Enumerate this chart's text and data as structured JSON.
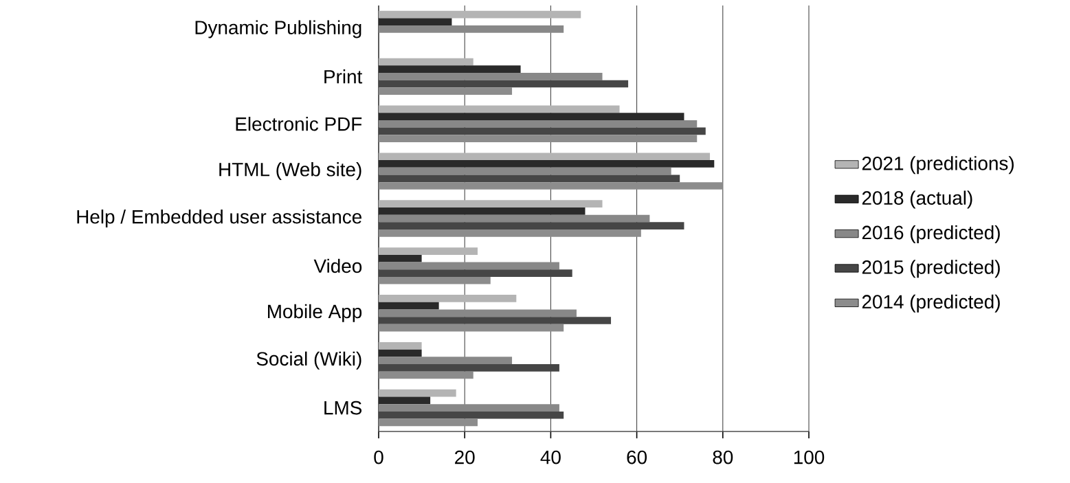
{
  "chart_data": {
    "type": "bar",
    "orientation": "horizontal",
    "categories": [
      "Dynamic Publishing",
      "Print",
      "Electronic PDF",
      "HTML (Web site)",
      "Help / Embedded user assistance",
      "Video",
      "Mobile App",
      "Social (Wiki)",
      "LMS"
    ],
    "series": [
      {
        "name": "2021 (predictions)",
        "color": "#b4b4b4",
        "values": [
          47,
          22,
          56,
          77,
          52,
          23,
          32,
          10,
          18
        ]
      },
      {
        "name": "2018 (actual)",
        "color": "#2a2a2a",
        "values": [
          17,
          33,
          71,
          78,
          48,
          10,
          14,
          10,
          12
        ]
      },
      {
        "name": "2016 (predicted)",
        "color": "#888888",
        "values": [
          43,
          52,
          74,
          68,
          63,
          42,
          46,
          31,
          42
        ]
      },
      {
        "name": "2015 (predicted)",
        "color": "#464646",
        "values": [
          null,
          58,
          76,
          70,
          71,
          45,
          54,
          42,
          43
        ]
      },
      {
        "name": "2014 (predicted)",
        "color": "#8c8c8c",
        "values": [
          null,
          31,
          74,
          80,
          61,
          26,
          43,
          22,
          23
        ]
      }
    ],
    "xlim": [
      0,
      100
    ],
    "xticks": [
      0,
      20,
      40,
      60,
      80,
      100
    ],
    "grid": "x",
    "legend": "right"
  }
}
